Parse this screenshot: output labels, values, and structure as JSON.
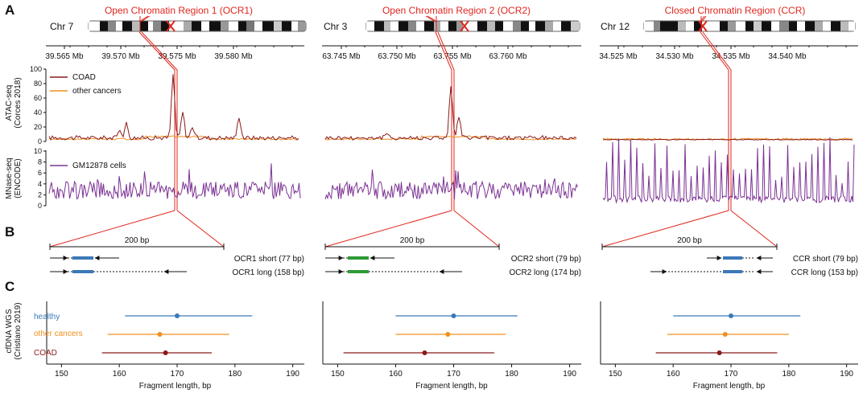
{
  "panels": {
    "a": "A",
    "b": "B",
    "c": "C"
  },
  "colors": {
    "red": "#e0261d",
    "coad": "#8b1a1a",
    "other": "#f0901f",
    "mnase": "#7b3294",
    "healthy": "#3b79b8",
    "green": "#2e9a35",
    "blue_fragment": "#3b79b8"
  },
  "regions": [
    {
      "title": "Open Chromatin Region 1 (OCR1)",
      "chr": "Chr 7",
      "ticks": [
        "39.565 Mb",
        "39.570 Mb",
        "39.575 Mb",
        "39.580 Mb"
      ],
      "bp_label": "200 bp",
      "frag_short": "OCR1 short (77 bp)",
      "frag_long": "OCR1 long (158 bp)",
      "cfdna": {
        "healthy": [
          161,
          170,
          183
        ],
        "other": [
          158,
          167,
          179
        ],
        "coad": [
          157,
          168,
          176
        ]
      }
    },
    {
      "title": "Open Chromatin Region 2 (OCR2)",
      "chr": "Chr 3",
      "ticks": [
        "63.745 Mb",
        "63.750 Mb",
        "63.755 Mb",
        "63.760 Mb"
      ],
      "bp_label": "200 bp",
      "frag_short": "OCR2 short (79 bp)",
      "frag_long": "OCR2 long (174 bp)",
      "cfdna": {
        "healthy": [
          160,
          170,
          181
        ],
        "other": [
          160,
          169,
          179
        ],
        "coad": [
          151,
          165,
          177
        ]
      }
    },
    {
      "title": "Closed Chromatin Region (CCR)",
      "chr": "Chr 12",
      "ticks": [
        "34.525 Mb",
        "34.530 Mb",
        "34.535 Mb",
        "34.540 Mb"
      ],
      "bp_label": "200 bp",
      "frag_short": "CCR short (79 bp)",
      "frag_long": "CCR long (153 bp)",
      "cfdna": {
        "healthy": [
          160,
          170,
          182
        ],
        "other": [
          159,
          169,
          180
        ],
        "coad": [
          157,
          168,
          178
        ]
      }
    }
  ],
  "atac": {
    "ylabel1": "ATAC-seq",
    "ylabel2": "(Corces 2018)",
    "yticks": [
      "0",
      "20",
      "40",
      "60",
      "80",
      "100"
    ],
    "legend_coad": "COAD",
    "legend_other": "other cancers"
  },
  "mnase": {
    "ylabel1": "MNase-seq",
    "ylabel2": "(ENCODE)",
    "yticks": [
      "0",
      "2",
      "4",
      "6",
      "8",
      "10"
    ],
    "legend": "GM12878 cells"
  },
  "cfdna_axis": {
    "ylabel1": "cfDNA WGS",
    "ylabel2": "(Cristiano 2019)",
    "xticks": [
      "150",
      "160",
      "170",
      "180",
      "190"
    ],
    "xlabel": "Fragment length, bp",
    "legend_healthy": "healthy",
    "legend_other": "other cancers",
    "legend_coad": "COAD"
  }
}
